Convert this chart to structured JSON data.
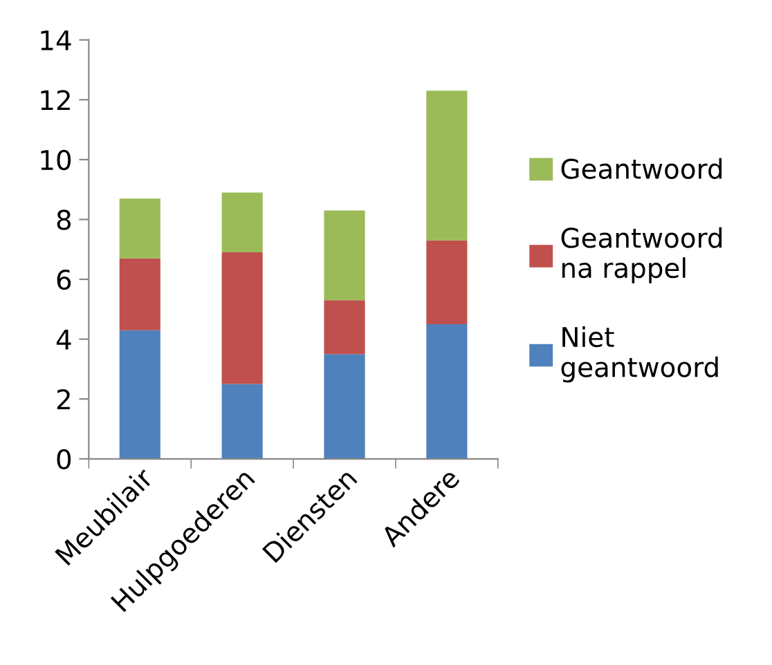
{
  "chart_data": {
    "type": "bar",
    "stacked": true,
    "categories": [
      "Meubilair",
      "Hulpgoederen",
      "Diensten",
      "Andere"
    ],
    "series": [
      {
        "name": "Niet\ngeantwoord",
        "color": "#4f81bd",
        "values": [
          4.3,
          2.5,
          3.5,
          4.5
        ]
      },
      {
        "name": "Geantwoord\nna rappel",
        "color": "#c0504d",
        "values": [
          2.4,
          4.4,
          1.8,
          2.8
        ]
      },
      {
        "name": "Geantwoord",
        "color": "#9bbb59",
        "values": [
          2.0,
          2.0,
          3.0,
          5.0
        ]
      }
    ],
    "ylim": [
      0,
      14
    ],
    "yticks": [
      0,
      2,
      4,
      6,
      8,
      10,
      12,
      14
    ],
    "grid": false,
    "legend": "right"
  }
}
